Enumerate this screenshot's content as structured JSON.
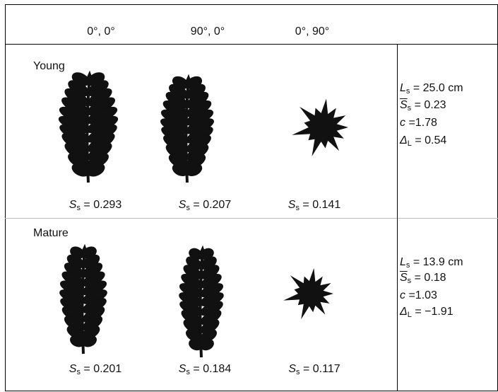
{
  "columns": [
    "0°, 0°",
    "90°, 0°",
    "0°, 90°"
  ],
  "rows": [
    {
      "label": "Young",
      "views": [
        {
          "symbol": "S",
          "sub": "s",
          "value": "= 0.293"
        },
        {
          "symbol": "S",
          "sub": "s",
          "value": "= 0.207"
        },
        {
          "symbol": "S",
          "sub": "s",
          "value": "= 0.141"
        }
      ],
      "stats": [
        {
          "symbol": "L",
          "sub": "s",
          "value": "= 25.0 cm"
        },
        {
          "symbol": "S",
          "sub": "s",
          "value": "= 0.23"
        },
        {
          "symbol": "c",
          "value": "=1.78"
        },
        {
          "symbol": "Δ",
          "sub": "L",
          "value": "= 0.54"
        }
      ]
    },
    {
      "label": "Mature",
      "views": [
        {
          "symbol": "S",
          "sub": "s",
          "value": "= 0.201"
        },
        {
          "symbol": "S",
          "sub": "s",
          "value": "= 0.184"
        },
        {
          "symbol": "S",
          "sub": "s",
          "value": "= 0.117"
        }
      ],
      "stats": [
        {
          "symbol": "L",
          "sub": "s",
          "value": "= 13.9 cm"
        },
        {
          "symbol": "S",
          "sub": "s",
          "value": "= 0.18"
        },
        {
          "symbol": "c",
          "value": "=1.03"
        },
        {
          "symbol": "Δ",
          "sub": "L",
          "value": "= −1.91"
        }
      ]
    }
  ]
}
